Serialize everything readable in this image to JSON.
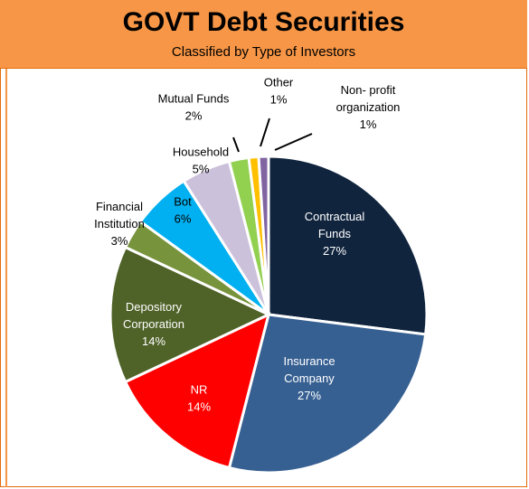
{
  "chart_data": {
    "type": "pie",
    "title": "GOVT Debt Securities",
    "subtitle": "Classified by Type of Investors",
    "slices": [
      {
        "label": [
          "Contractual",
          "Funds"
        ],
        "value": 27,
        "display": "27%",
        "color": "#10243e",
        "text_color": "#ffffff"
      },
      {
        "label": [
          "Insurance",
          "Company"
        ],
        "value": 27,
        "display": "27%",
        "color": "#376092",
        "text_color": "#ffffff"
      },
      {
        "label": [
          "NR"
        ],
        "value": 14,
        "display": "14%",
        "color": "#ff0000",
        "text_color": "#ffffff"
      },
      {
        "label": [
          "Depository",
          "Corporation"
        ],
        "value": 14,
        "display": "14%",
        "color": "#4f6228",
        "text_color": "#ffffff"
      },
      {
        "label": [
          "Financial",
          "Institution"
        ],
        "value": 3,
        "display": "3%",
        "color": "#77933c",
        "text_color": "#000000"
      },
      {
        "label": [
          "Bot"
        ],
        "value": 6,
        "display": "6%",
        "color": "#00b0f0",
        "text_color": "#000000"
      },
      {
        "label": [
          "Household"
        ],
        "value": 5,
        "display": "5%",
        "color": "#ccc1da",
        "text_color": "#000000"
      },
      {
        "label": [
          "Mutual Funds"
        ],
        "value": 2,
        "display": "2%",
        "color": "#92d050",
        "text_color": "#000000"
      },
      {
        "label": [
          "Other"
        ],
        "value": 1,
        "display": "1%",
        "color": "#ffc000",
        "text_color": "#000000"
      },
      {
        "label": [
          "Non- profit",
          "organization"
        ],
        "value": 1,
        "display": "1%",
        "color": "#8064a2",
        "text_color": "#000000"
      }
    ]
  }
}
